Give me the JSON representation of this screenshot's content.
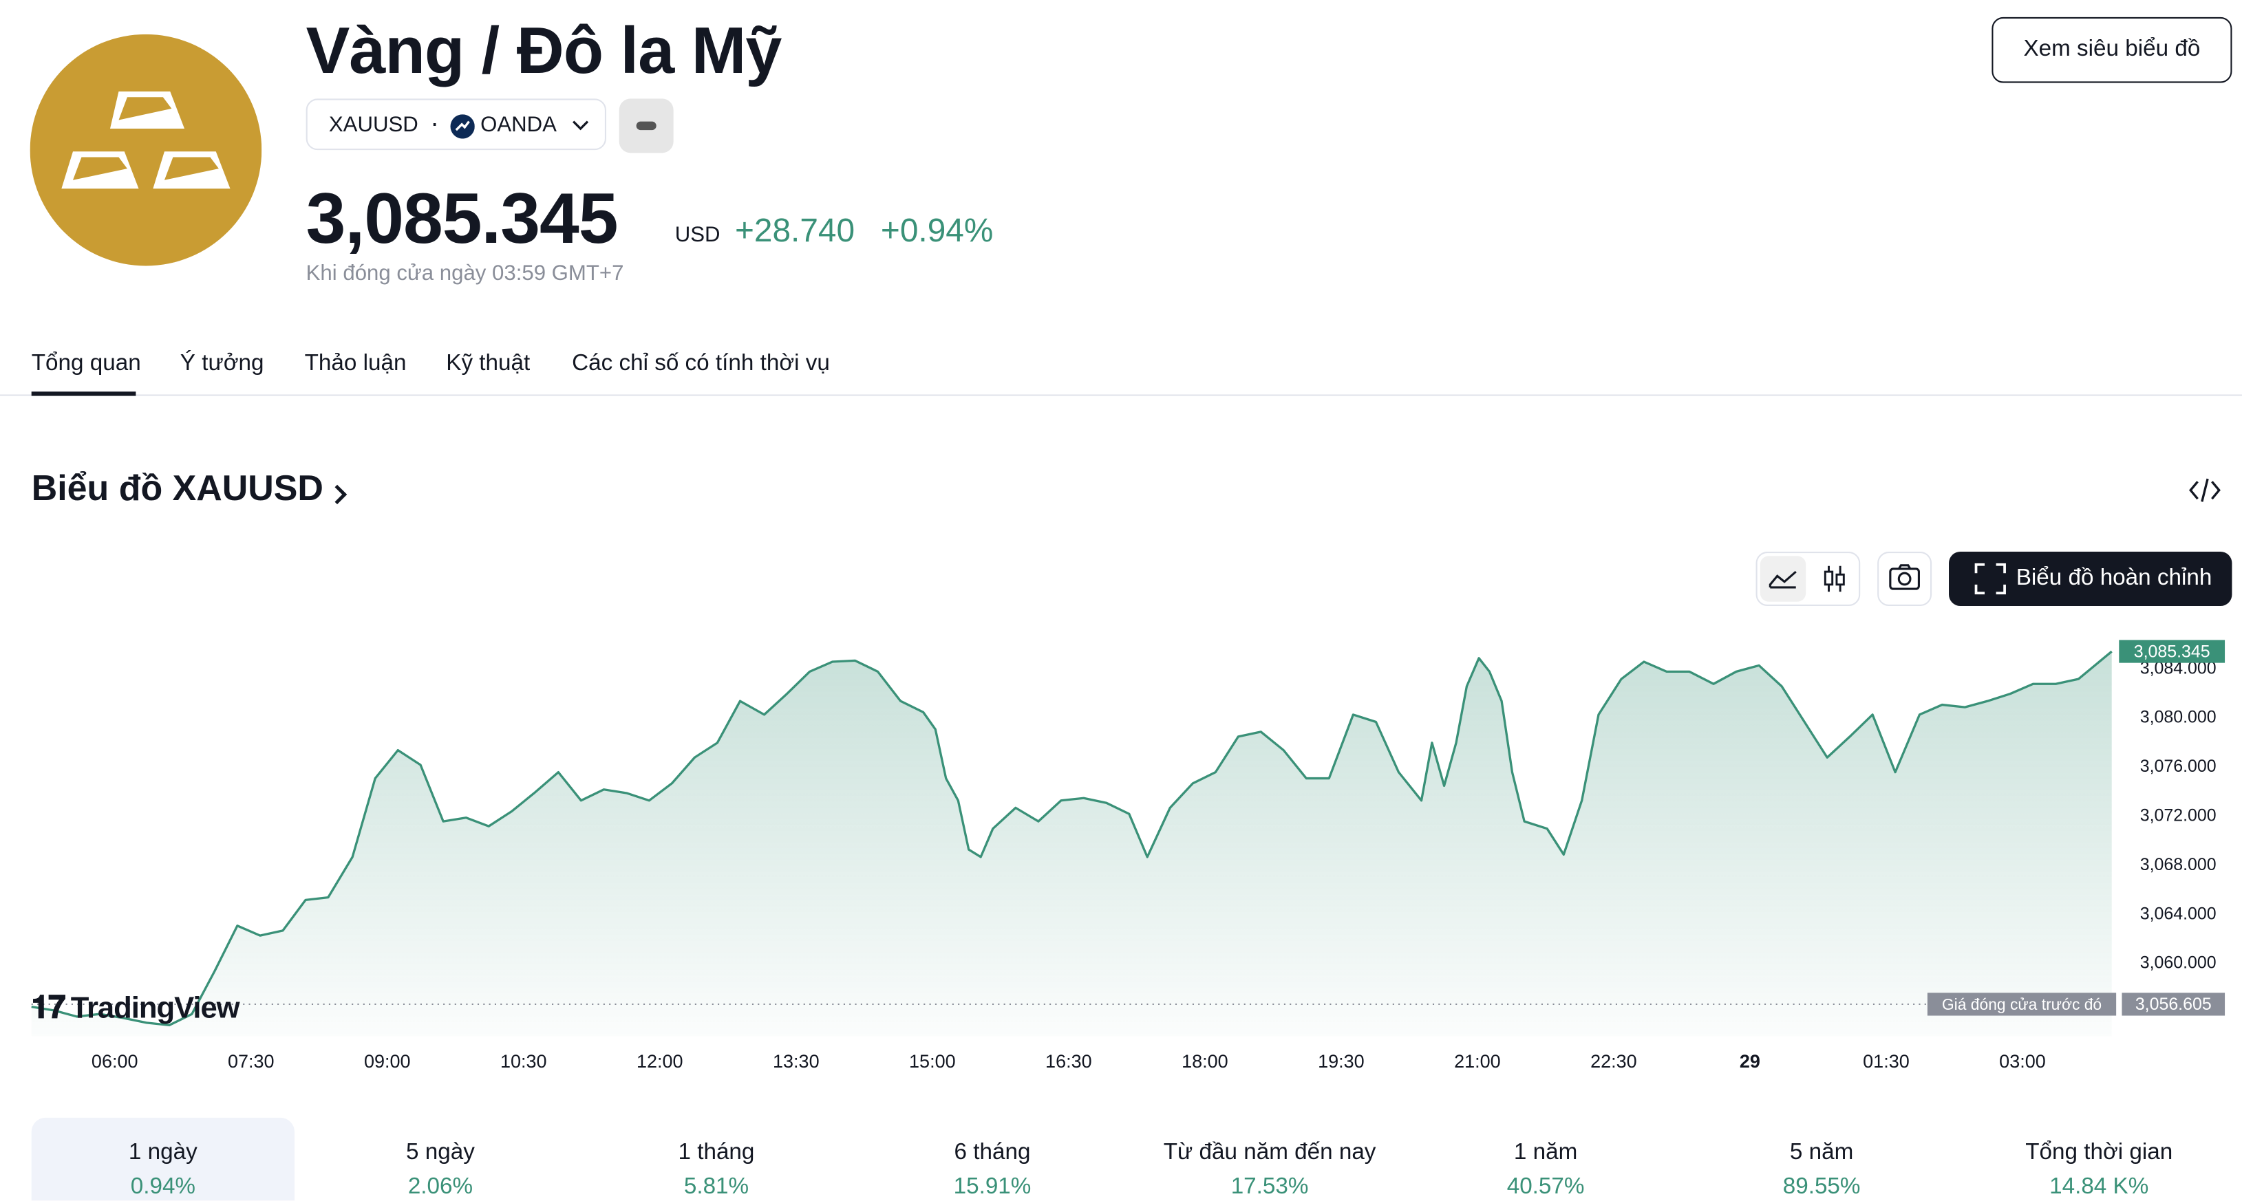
{
  "header": {
    "title": "Vàng / Đô la Mỹ",
    "symbol": "XAUUSD",
    "exchange": "OANDA",
    "button": "Xem siêu biểu đồ",
    "price": "3,085.345",
    "currency": "USD",
    "change": "+28.740",
    "change_percent": "+0.94%",
    "status": "Khi đóng cửa ngày 03:59 GMT+7"
  },
  "tabs": [
    "Tổng quan",
    "Ý tưởng",
    "Thảo luận",
    "Kỹ thuật",
    "Các chỉ số có tính thời vụ"
  ],
  "section_title": "Biểu đồ XAUUSD",
  "toolbar": {
    "full_chart": "Biểu đồ hoàn chỉnh"
  },
  "brand": "TradingView",
  "chart_data": {
    "type": "line",
    "color": "#3a9178",
    "x": [
      305,
      320,
      335,
      350,
      365,
      381,
      396,
      411,
      426,
      441,
      456,
      471,
      486,
      501,
      517,
      532,
      547,
      562,
      577,
      592,
      607,
      622,
      637,
      653,
      668,
      683,
      698,
      713,
      728,
      743,
      758,
      773,
      789,
      804,
      819,
      834,
      849,
      864,
      879,
      894,
      902,
      909,
      917,
      924,
      932,
      940,
      955,
      970,
      985,
      1000,
      1015,
      1030,
      1042,
      1057,
      1072,
      1087,
      1102,
      1117,
      1132,
      1147,
      1162,
      1178,
      1193,
      1208,
      1223,
      1230,
      1238,
      1246,
      1253,
      1261,
      1268,
      1276,
      1283,
      1291,
      1306,
      1317,
      1329,
      1340,
      1355,
      1370,
      1385,
      1400,
      1416,
      1431,
      1446,
      1461,
      1476,
      1491,
      1506,
      1521,
      1536,
      1552,
      1567,
      1582,
      1597,
      1612,
      1627,
      1642,
      1657,
      1679
    ],
    "values": [
      3056.4,
      3056.1,
      3055.6,
      3055.8,
      3055.5,
      3055.1,
      3054.9,
      3055.8,
      3059.3,
      3063.0,
      3062.2,
      3062.6,
      3065.1,
      3065.3,
      3068.6,
      3075.0,
      3077.3,
      3076.1,
      3071.5,
      3071.8,
      3071.1,
      3072.3,
      3073.8,
      3075.5,
      3073.2,
      3074.1,
      3073.8,
      3073.2,
      3074.6,
      3076.7,
      3077.9,
      3081.3,
      3080.2,
      3081.9,
      3083.7,
      3084.5,
      3084.6,
      3083.7,
      3081.3,
      3080.4,
      3079.0,
      3075.0,
      3073.2,
      3069.2,
      3068.6,
      3070.9,
      3072.6,
      3071.5,
      3073.2,
      3073.4,
      3073.0,
      3072.1,
      3068.6,
      3072.6,
      3074.6,
      3075.5,
      3078.4,
      3078.8,
      3077.3,
      3075.0,
      3075.0,
      3080.2,
      3079.6,
      3075.5,
      3073.2,
      3077.9,
      3074.4,
      3077.9,
      3082.5,
      3084.8,
      3083.7,
      3081.3,
      3075.5,
      3071.5,
      3070.9,
      3068.8,
      3073.2,
      3080.2,
      3083.1,
      3084.5,
      3083.7,
      3083.7,
      3082.7,
      3083.7,
      3084.2,
      3082.5,
      3079.6,
      3076.7,
      3078.4,
      3080.2,
      3075.5,
      3080.2,
      3081.0,
      3080.8,
      3081.3,
      3081.9,
      3082.7,
      3082.7,
      3083.1,
      3085.345
    ],
    "xlim": [
      305,
      1680
    ],
    "xticks": [
      {
        "value": 360,
        "label": "06:00"
      },
      {
        "value": 450,
        "label": "07:30"
      },
      {
        "value": 540,
        "label": "09:00"
      },
      {
        "value": 630,
        "label": "10:30"
      },
      {
        "value": 720,
        "label": "12:00"
      },
      {
        "value": 810,
        "label": "13:30"
      },
      {
        "value": 900,
        "label": "15:00"
      },
      {
        "value": 990,
        "label": "16:30"
      },
      {
        "value": 1080,
        "label": "18:00"
      },
      {
        "value": 1170,
        "label": "19:30"
      },
      {
        "value": 1260,
        "label": "21:00"
      },
      {
        "value": 1350,
        "label": "22:30"
      },
      {
        "value": 1440,
        "label": "29"
      },
      {
        "value": 1530,
        "label": "01:30"
      },
      {
        "value": 1620,
        "label": "03:00"
      }
    ],
    "ylim": [
      3054,
      3086.6
    ],
    "yticks": [
      {
        "value": 3060,
        "label": "3,060.000"
      },
      {
        "value": 3064,
        "label": "3,064.000"
      },
      {
        "value": 3068,
        "label": "3,068.000"
      },
      {
        "value": 3072,
        "label": "3,072.000"
      },
      {
        "value": 3076,
        "label": "3,076.000"
      },
      {
        "value": 3080,
        "label": "3,080.000"
      },
      {
        "value": 3084,
        "label": "3,084.000"
      }
    ],
    "grid": false,
    "price_tag": {
      "value": 3085.345,
      "label": "3,085.345"
    },
    "prev_close": {
      "name": "Giá đóng cửa trước đó",
      "value": 3056.605,
      "label": "3,056.605"
    }
  },
  "performance": [
    {
      "period": "1 ngày",
      "change": "0.94%"
    },
    {
      "period": "5 ngày",
      "change": "2.06%"
    },
    {
      "period": "1 tháng",
      "change": "5.81%"
    },
    {
      "period": "6 tháng",
      "change": "15.91%"
    },
    {
      "period": "Từ đầu năm đến nay",
      "change": "17.53%"
    },
    {
      "period": "1 năm",
      "change": "40.57%"
    },
    {
      "period": "5 năm",
      "change": "89.55%"
    },
    {
      "period": "Tổng thời gian",
      "change": "14.84 K%"
    }
  ]
}
